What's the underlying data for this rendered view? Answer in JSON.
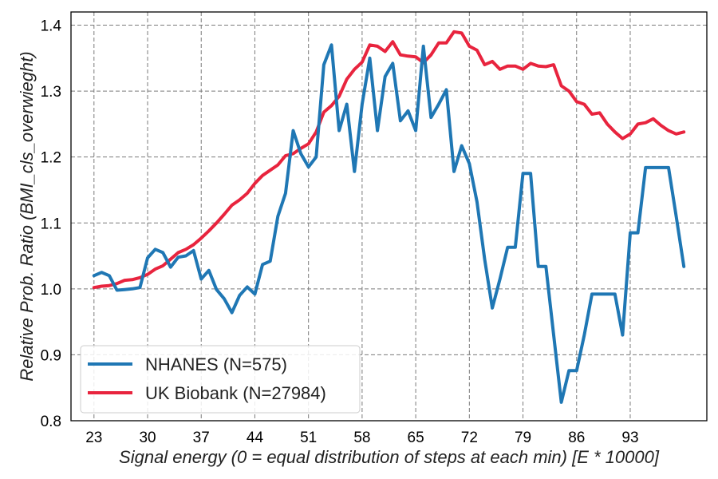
{
  "chart_data": {
    "type": "line",
    "title": "",
    "xlabel": "Signal energy (0 = equal distribution of steps at each min) [E * 10000]",
    "ylabel": "Relative Prob. Ratio (BMI_cls_overwieght)",
    "xlim": [
      20,
      103
    ],
    "ylim": [
      0.8,
      1.42
    ],
    "x_ticks": [
      23,
      30,
      37,
      44,
      51,
      58,
      65,
      72,
      79,
      86,
      93
    ],
    "y_ticks": [
      0.8,
      0.9,
      1.0,
      1.1,
      1.2,
      1.3,
      1.4
    ],
    "y_tick_labels": [
      "0.8",
      "0.9",
      "1.0",
      "1.1",
      "1.2",
      "1.3",
      "1.4"
    ],
    "grid": true,
    "legend_position": "lower-left",
    "series": [
      {
        "name": "NHANES (N=575)",
        "color": "#1f77b4",
        "x": [
          23,
          24,
          25,
          26,
          27,
          28,
          29,
          30,
          31,
          32,
          33,
          34,
          35,
          36,
          37,
          38,
          39,
          40,
          41,
          42,
          43,
          44,
          45,
          46,
          47,
          48,
          49,
          50,
          51,
          52,
          53,
          54,
          55,
          56,
          57,
          58,
          59,
          60,
          61,
          62,
          63,
          64,
          65,
          66,
          67,
          68,
          69,
          70,
          71,
          72,
          73,
          74,
          75,
          76,
          77,
          78,
          79,
          80,
          81,
          82,
          83,
          84,
          85,
          86,
          87,
          88,
          89,
          90,
          91,
          92,
          93,
          94,
          95,
          96,
          97,
          98,
          99,
          100
        ],
        "y": [
          1.02,
          1.025,
          1.02,
          0.998,
          0.999,
          1.0,
          1.002,
          1.047,
          1.06,
          1.055,
          1.033,
          1.048,
          1.05,
          1.058,
          1.015,
          1.028,
          0.999,
          0.985,
          0.964,
          0.99,
          1.003,
          0.992,
          1.037,
          1.042,
          1.11,
          1.145,
          1.24,
          1.205,
          1.185,
          1.2,
          1.34,
          1.37,
          1.24,
          1.28,
          1.178,
          1.28,
          1.35,
          1.24,
          1.322,
          1.342,
          1.255,
          1.27,
          1.24,
          1.368,
          1.26,
          1.28,
          1.302,
          1.178,
          1.217,
          1.19,
          1.132,
          1.045,
          0.971,
          1.015,
          1.063,
          1.063,
          1.175,
          1.175,
          1.034,
          1.034,
          0.93,
          0.828,
          0.876,
          0.876,
          0.93,
          0.992,
          0.992,
          0.992,
          0.992,
          0.93,
          1.085,
          1.085,
          1.184,
          1.184,
          1.184,
          1.184,
          1.11,
          1.034
        ]
      },
      {
        "name": "UK Biobank (N=27984)",
        "color": "#e8243e",
        "x": [
          23,
          24,
          25,
          26,
          27,
          28,
          29,
          30,
          31,
          32,
          33,
          34,
          35,
          36,
          37,
          38,
          39,
          40,
          41,
          42,
          43,
          44,
          45,
          46,
          47,
          48,
          49,
          50,
          51,
          52,
          53,
          54,
          55,
          56,
          57,
          58,
          59,
          60,
          61,
          62,
          63,
          64,
          65,
          66,
          67,
          68,
          69,
          70,
          71,
          72,
          73,
          74,
          75,
          76,
          77,
          78,
          79,
          80,
          81,
          82,
          83,
          84,
          85,
          86,
          87,
          88,
          89,
          90,
          91,
          92,
          93,
          94,
          95,
          96,
          97,
          98,
          99,
          100
        ],
        "y": [
          1.002,
          1.004,
          1.005,
          1.008,
          1.013,
          1.014,
          1.017,
          1.022,
          1.03,
          1.035,
          1.045,
          1.055,
          1.06,
          1.067,
          1.077,
          1.088,
          1.1,
          1.113,
          1.127,
          1.135,
          1.145,
          1.16,
          1.172,
          1.18,
          1.188,
          1.202,
          1.205,
          1.213,
          1.22,
          1.238,
          1.268,
          1.278,
          1.292,
          1.318,
          1.333,
          1.344,
          1.37,
          1.368,
          1.36,
          1.375,
          1.355,
          1.353,
          1.352,
          1.343,
          1.355,
          1.373,
          1.373,
          1.39,
          1.388,
          1.368,
          1.362,
          1.34,
          1.345,
          1.333,
          1.338,
          1.338,
          1.333,
          1.342,
          1.338,
          1.337,
          1.34,
          1.308,
          1.3,
          1.284,
          1.28,
          1.265,
          1.267,
          1.25,
          1.238,
          1.228,
          1.235,
          1.25,
          1.252,
          1.258,
          1.248,
          1.24,
          1.235,
          1.238
        ]
      }
    ]
  }
}
